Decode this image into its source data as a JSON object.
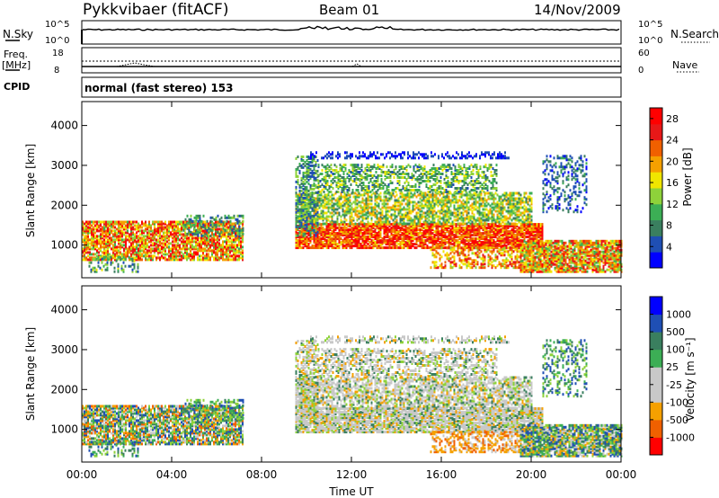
{
  "header": {
    "title": "Pykkvibaer (fitACF)",
    "beam": "Beam 01",
    "date": "14/Nov/2009"
  },
  "summary": {
    "nsky_label": "N.Sky",
    "nsky_ticks": [
      "10^5",
      "10^0"
    ],
    "nsearch_label": "N.Search",
    "nsearch_ticks": [
      "10^5",
      "10^0"
    ],
    "freq_label": "Freq.",
    "freq_unit": "[MHz]",
    "freq_ticks": [
      "18",
      "8"
    ],
    "nave_label": "Nave",
    "nave_ticks": [
      "60",
      "0"
    ],
    "cpid_label": "CPID",
    "cpid_text": "normal (fast stereo) 153"
  },
  "colors": {
    "power": [
      "#0000ff",
      "#1f4fb4",
      "#3a7f5f",
      "#3cae55",
      "#8ed23a",
      "#f0e600",
      "#f5a000",
      "#f06000",
      "#e81818",
      "#ff0000"
    ],
    "velocity_scale": [
      "#ff0000",
      "#f06000",
      "#f5a000",
      "#c8c8c8",
      "#c8c8c8",
      "#3cae55",
      "#3a7f5f",
      "#1f4fb4",
      "#0000ff"
    ]
  },
  "chart_data": [
    {
      "type": "heatmap",
      "title": "",
      "xlabel": "Time UT",
      "ylabel": "Slant Range [km]",
      "xlim": [
        "00:00",
        "24:00"
      ],
      "ylim": [
        180,
        4600
      ],
      "x_ticks": [
        "00:00",
        "04:00",
        "08:00",
        "12:00",
        "16:00",
        "20:00",
        "00:00"
      ],
      "y_ticks": [
        1000,
        2000,
        3000,
        4000
      ],
      "colorbar": {
        "label": "Power [dB]",
        "ticks": [
          4,
          8,
          12,
          16,
          20,
          24,
          28
        ],
        "range": [
          0,
          30
        ]
      }
    },
    {
      "type": "heatmap",
      "title": "",
      "xlabel": "Time UT",
      "ylabel": "Slant Range [km]",
      "xlim": [
        "00:00",
        "24:00"
      ],
      "ylim": [
        180,
        4600
      ],
      "x_ticks": [
        "00:00",
        "04:00",
        "08:00",
        "12:00",
        "16:00",
        "20:00",
        "00:00"
      ],
      "y_ticks": [
        1000,
        2000,
        3000,
        4000
      ],
      "colorbar": {
        "label": "Velocity [m s⁻¹]",
        "ticks": [
          1000,
          500,
          100,
          25,
          -25,
          -100,
          -500,
          -1000
        ]
      }
    }
  ]
}
